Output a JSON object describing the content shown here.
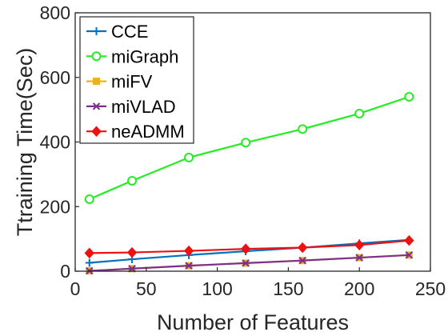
{
  "chart_data": {
    "type": "line",
    "xlabel": "Number of Features",
    "ylabel": "Ttraining Time(Sec)",
    "xlim": [
      0,
      250
    ],
    "ylim": [
      0,
      800
    ],
    "xticks": [
      "0",
      "50",
      "100",
      "150",
      "200",
      "250"
    ],
    "yticks": [
      "0",
      "200",
      "400",
      "600",
      "800"
    ],
    "grid": false,
    "legend_position": "top-left",
    "x": [
      10,
      40,
      80,
      120,
      160,
      200,
      235
    ],
    "series": [
      {
        "name": "CCE",
        "color": "#0072BD",
        "marker": "plus",
        "values": [
          26,
          37,
          50,
          62,
          73,
          86,
          97
        ]
      },
      {
        "name": "miGraph",
        "color": "#22EE22",
        "marker": "circle",
        "values": [
          223,
          280,
          352,
          398,
          440,
          488,
          540
        ]
      },
      {
        "name": "miFV",
        "color": "#EDB120",
        "marker": "square",
        "values": [
          1,
          8,
          17,
          25,
          33,
          42,
          50
        ]
      },
      {
        "name": "miVLAD",
        "color": "#7E2F8E",
        "marker": "x",
        "values": [
          1,
          8,
          17,
          25,
          33,
          42,
          50
        ]
      },
      {
        "name": "neADMM",
        "color": "#EE1111",
        "marker": "diamond",
        "values": [
          56,
          58,
          63,
          69,
          73,
          81,
          95
        ]
      }
    ]
  }
}
